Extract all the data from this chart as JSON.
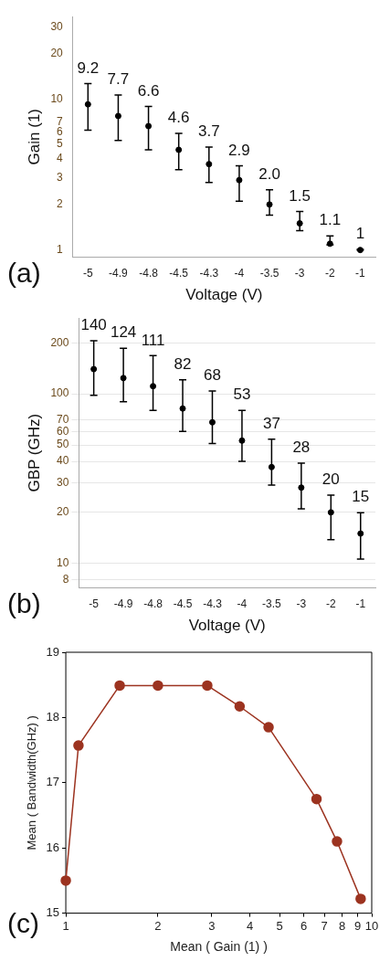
{
  "chart_data": [
    {
      "type": "scatter",
      "categories": [
        "-5",
        "-4.9",
        "-4.8",
        "-4.5",
        "-4.3",
        "-4",
        "-3.5",
        "-3",
        "-2",
        "-1"
      ],
      "values": [
        9.2,
        7.7,
        6.6,
        4.6,
        3.7,
        2.9,
        2.0,
        1.5,
        1.1,
        1
      ],
      "errors": [
        [
          6.2,
          12.6
        ],
        [
          5.3,
          10.6
        ],
        [
          4.6,
          8.9
        ],
        [
          3.4,
          5.9
        ],
        [
          2.8,
          4.8
        ],
        [
          2.1,
          3.6
        ],
        [
          1.7,
          2.5
        ],
        [
          1.34,
          1.8
        ],
        [
          1.08,
          1.24
        ],
        [
          1.0,
          1.01
        ]
      ],
      "color": "#000000",
      "marker": "circle",
      "value_labels": [
        "9.2",
        "7.7",
        "6.6",
        "4.6",
        "3.7",
        "2.9",
        "2.0",
        "1.5",
        "1.1",
        "1"
      ],
      "log": "y",
      "ylim": [
        0.9,
        35
      ],
      "yticks": [
        1,
        2,
        3,
        4,
        5,
        6,
        7,
        10,
        20,
        30
      ],
      "ylabel": "Gain (1)",
      "xlabel": "Voltage (V)",
      "grid": false,
      "annotations": [
        "(a)"
      ]
    },
    {
      "type": "scatter",
      "categories": [
        "-5",
        "-4.9",
        "-4.8",
        "-4.5",
        "-4.3",
        "-4",
        "-3.5",
        "-3",
        "-2",
        "-1"
      ],
      "values": [
        140,
        124,
        111,
        82,
        68,
        53,
        37,
        28,
        20,
        15
      ],
      "errors": [
        [
          98,
          206
        ],
        [
          90,
          186
        ],
        [
          80,
          168
        ],
        [
          60,
          121
        ],
        [
          51,
          104
        ],
        [
          40,
          80
        ],
        [
          29,
          54
        ],
        [
          21,
          39
        ],
        [
          13.8,
          25.3
        ],
        [
          10.6,
          19.9
        ]
      ],
      "color": "#000000",
      "marker": "circle",
      "value_labels": [
        "140",
        "124",
        "111",
        "82",
        "68",
        "53",
        "37",
        "28",
        "20",
        "15"
      ],
      "log": "y",
      "ylim": [
        7.2,
        280
      ],
      "yticks": [
        8,
        10,
        20,
        30,
        40,
        50,
        60,
        70,
        100,
        200
      ],
      "ylabel": "GBP (GHz)",
      "xlabel": "Voltage (V)",
      "grid": "y",
      "annotations": [
        "(b)"
      ]
    },
    {
      "type": "line",
      "x": [
        1,
        1.1,
        1.5,
        2.0,
        2.9,
        3.7,
        4.6,
        6.6,
        7.7,
        9.2
      ],
      "values": [
        15.5,
        17.57,
        18.49,
        18.49,
        18.49,
        18.17,
        17.85,
        16.75,
        16.1,
        15.22
      ],
      "color": "#9c3320",
      "marker": "circle",
      "log": "x",
      "xlim": [
        1,
        10
      ],
      "xticks": [
        1,
        2,
        3,
        4,
        5,
        6,
        7,
        8,
        9,
        10
      ],
      "ylim": [
        15,
        19
      ],
      "yticks": [
        15,
        16,
        17,
        18,
        19
      ],
      "xlabel": "Mean ( Gain (1) )",
      "ylabel": "Mean ( Bandwidth(GHz) )",
      "grid": false,
      "annotations": [
        "(c)"
      ]
    }
  ]
}
